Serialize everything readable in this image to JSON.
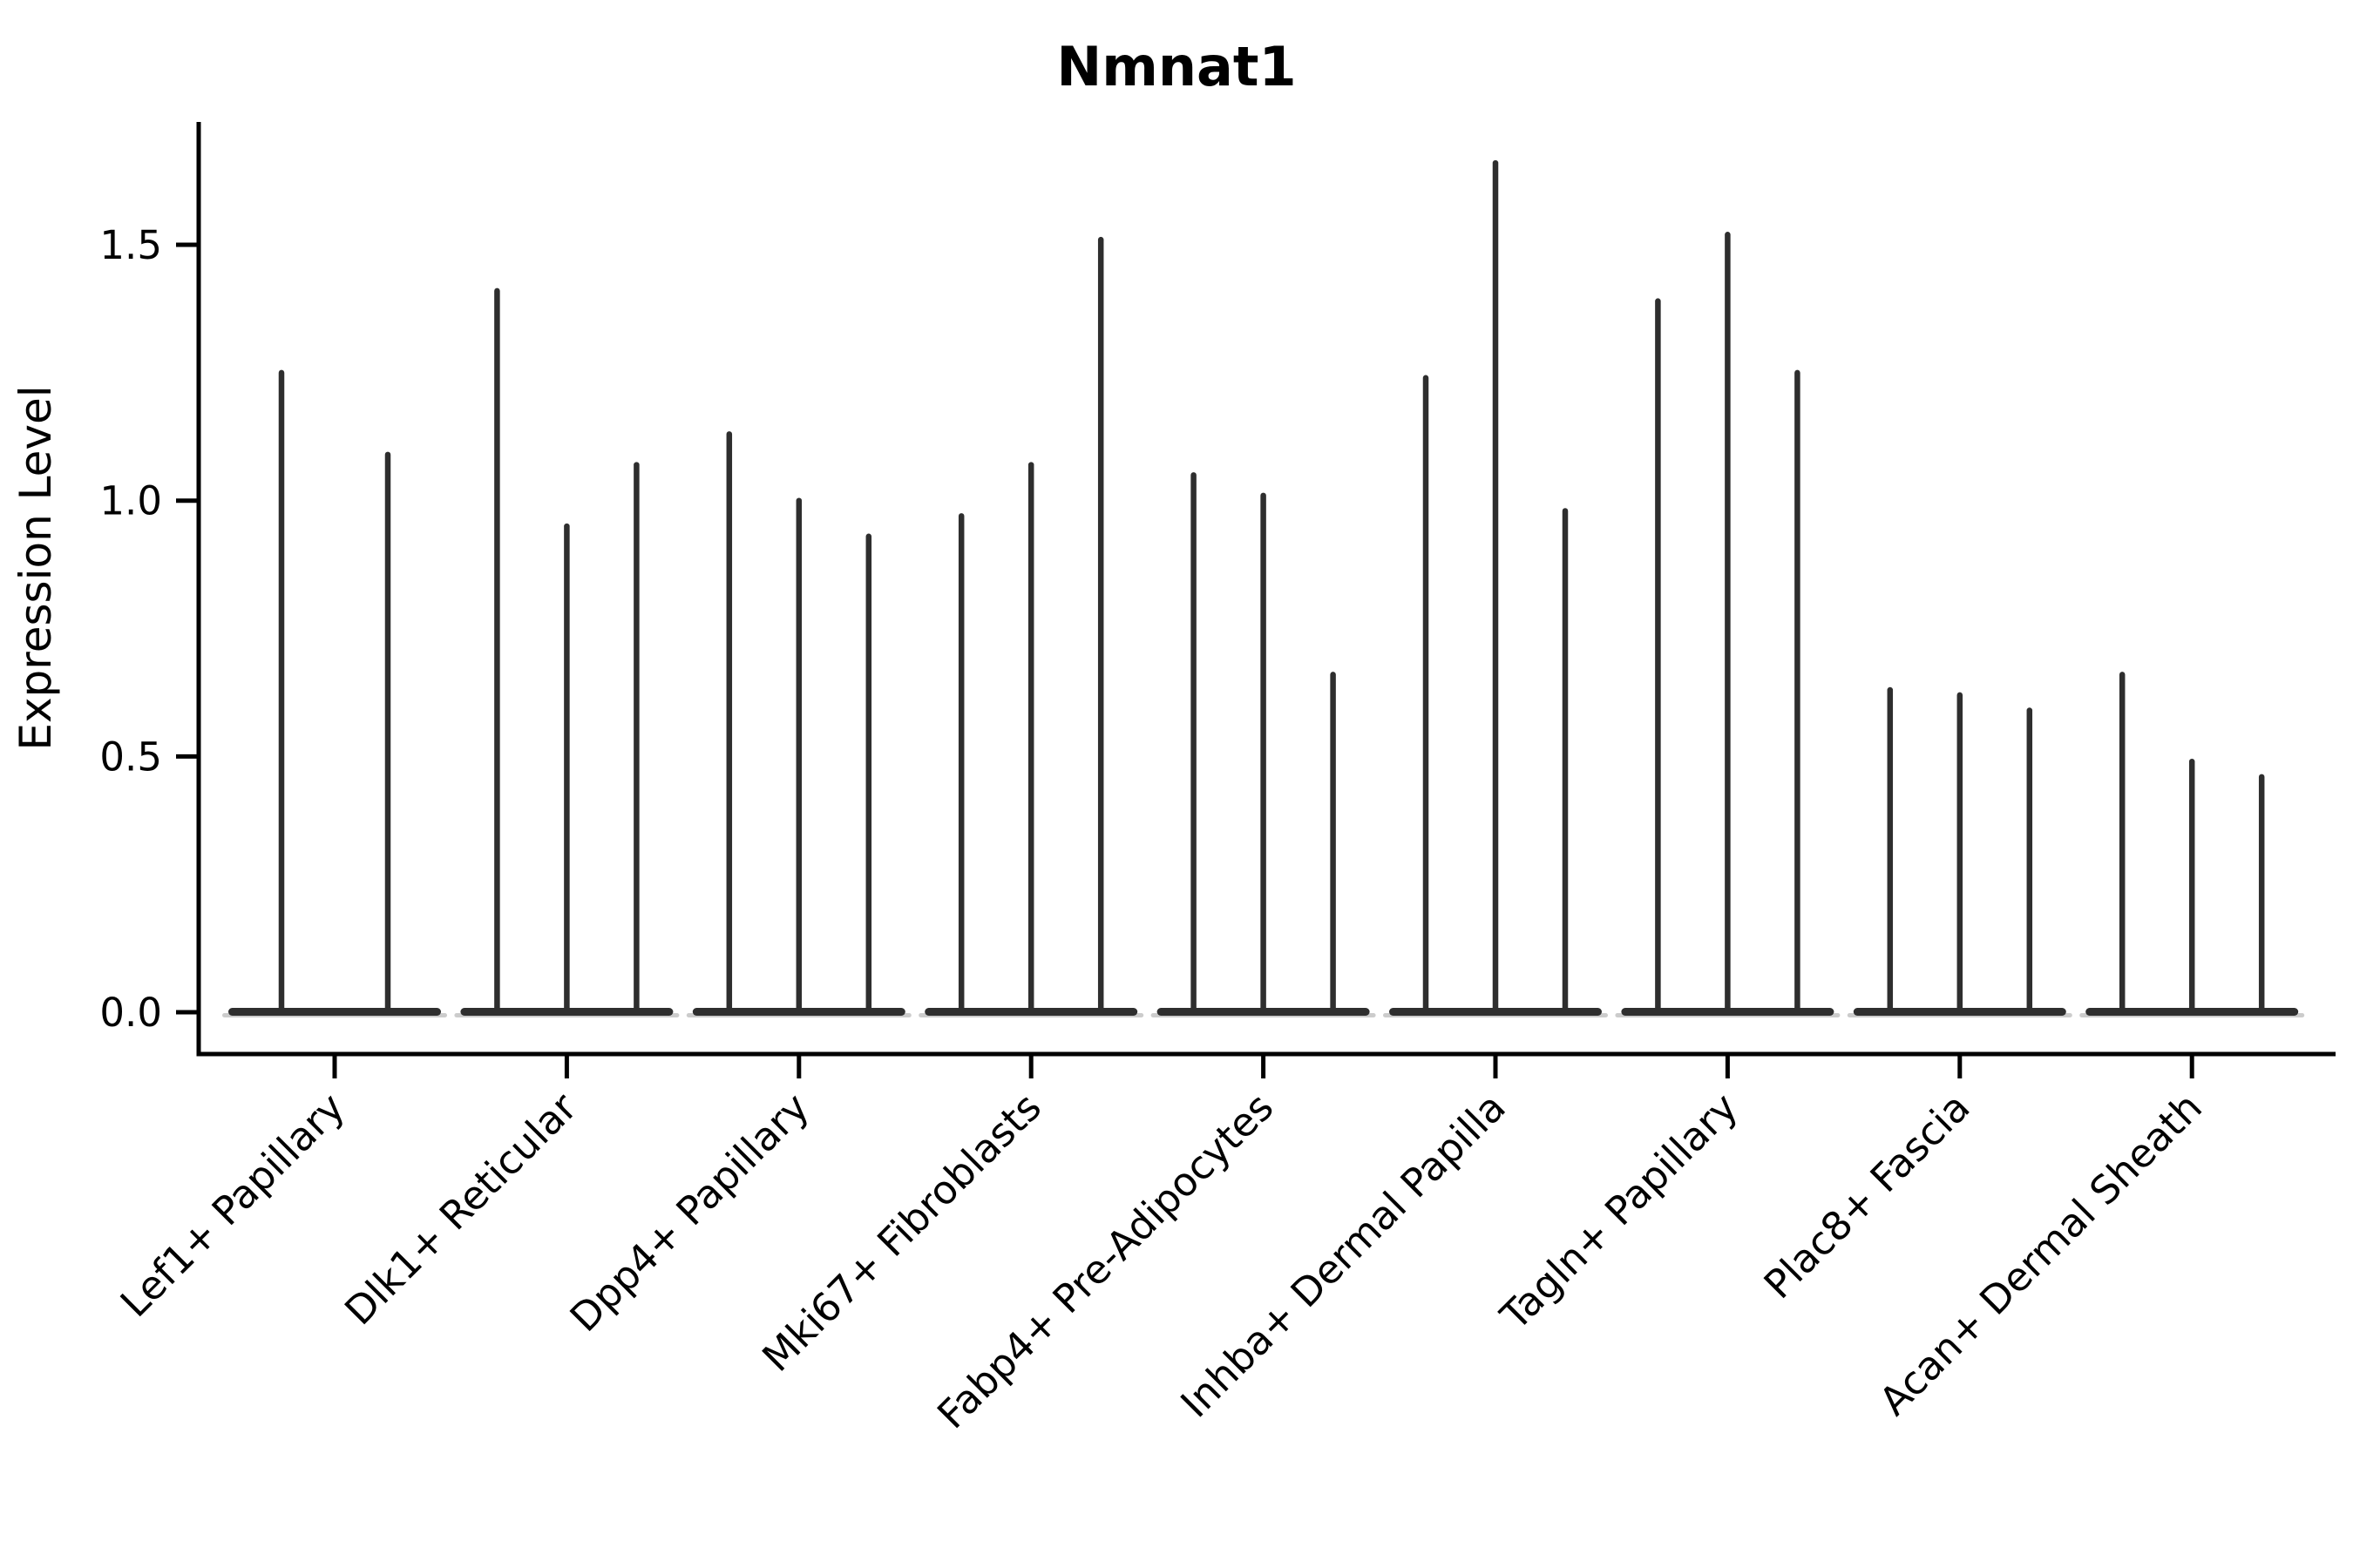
{
  "chart_data": {
    "type": "violin",
    "title": "Nmnat1",
    "xlabel": "",
    "ylabel": "Expression Level",
    "ytick_labels": [
      "0.0",
      "0.5",
      "1.0",
      "1.5"
    ],
    "ytick_values": [
      0.0,
      0.5,
      1.0,
      1.5
    ],
    "ylim": [
      -0.08,
      1.74
    ],
    "grid": false,
    "legend": false,
    "baseline_value": 0.0,
    "violin_shape_note": "each violin is collapsed flat at 0 expression with a thin spike up to its maximum value",
    "categories": [
      "Lef1+ Papillary",
      "Dlk1+ Reticular",
      "Dpp4+ Papillary",
      "Mki67+ Fibroblasts",
      "Fabp4+ Pre-Adipocytes",
      "Inhba+ Dermal Papilla",
      "Tagln+ Papillary",
      "Plac8+ Fascia",
      "Acan+ Dermal Sheath"
    ],
    "groups": [
      {
        "category": "Lef1+ Papillary",
        "violin_maxima": [
          1.25,
          1.09
        ]
      },
      {
        "category": "Dlk1+ Reticular",
        "violin_maxima": [
          1.41,
          0.95,
          1.07
        ]
      },
      {
        "category": "Dpp4+ Papillary",
        "violin_maxima": [
          1.13,
          1.0,
          0.93
        ]
      },
      {
        "category": "Mki67+ Fibroblasts",
        "violin_maxima": [
          0.97,
          1.07,
          1.51
        ]
      },
      {
        "category": "Fabp4+ Pre-Adipocytes",
        "violin_maxima": [
          1.05,
          1.01,
          0.66
        ]
      },
      {
        "category": "Inhba+ Dermal Papilla",
        "violin_maxima": [
          1.24,
          1.66,
          0.98
        ]
      },
      {
        "category": "Tagln+ Papillary",
        "violin_maxima": [
          1.39,
          1.52,
          1.25
        ]
      },
      {
        "category": "Plac8+ Fascia",
        "violin_maxima": [
          0.63,
          0.62,
          0.59
        ]
      },
      {
        "category": "Acan+ Dermal Sheath",
        "violin_maxima": [
          0.66,
          0.49,
          0.46
        ]
      }
    ],
    "style": {
      "violin_color": "#2e2e2e",
      "violin_halo_color": "#999999",
      "axis_color": "#000000",
      "text_color": "#000000",
      "background": "#ffffff"
    }
  }
}
